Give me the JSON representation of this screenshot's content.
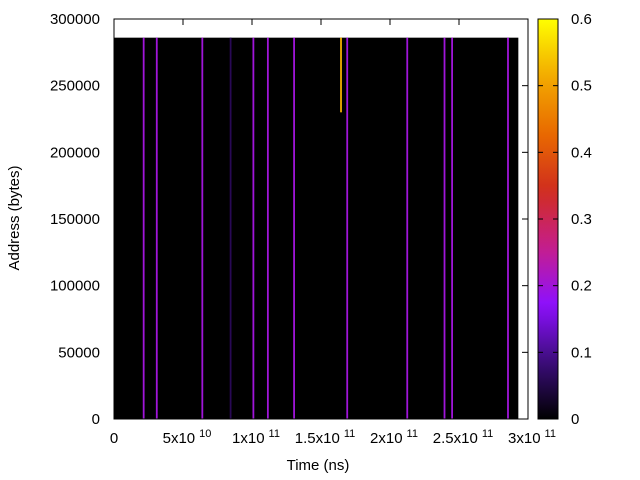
{
  "chart_data": {
    "type": "heatmap",
    "title": "",
    "xlabel": "Time (ns)",
    "ylabel": "Address (bytes)",
    "xlim": [
      0,
      300000000000
    ],
    "ylim": [
      0,
      300000
    ],
    "x_ticks": [
      {
        "value": 0,
        "mantissa": "0",
        "exp": ""
      },
      {
        "value": 50000000000,
        "mantissa": "5x10",
        "exp": "10"
      },
      {
        "value": 100000000000,
        "mantissa": "1x10",
        "exp": "11"
      },
      {
        "value": 150000000000,
        "mantissa": "1.5x10",
        "exp": "11"
      },
      {
        "value": 200000000000,
        "mantissa": "2x10",
        "exp": "11"
      },
      {
        "value": 250000000000,
        "mantissa": "2.5x10",
        "exp": "11"
      },
      {
        "value": 300000000000,
        "mantissa": "3x10",
        "exp": "11"
      }
    ],
    "y_ticks": [
      {
        "value": 0,
        "label": "0"
      },
      {
        "value": 50000,
        "label": "50000"
      },
      {
        "value": 100000,
        "label": "100000"
      },
      {
        "value": 150000,
        "label": "150000"
      },
      {
        "value": 200000,
        "label": "200000"
      },
      {
        "value": 250000,
        "label": "250000"
      },
      {
        "value": 300000,
        "label": "300000"
      }
    ],
    "background_value": 0,
    "data_extent": {
      "x": [
        0,
        293000000000
      ],
      "y": [
        0,
        286000
      ]
    },
    "stripes": [
      {
        "x": 21500000000,
        "y0": 0,
        "y1": 286000,
        "value": 0.2
      },
      {
        "x": 31000000000,
        "y0": 0,
        "y1": 286000,
        "value": 0.2
      },
      {
        "x": 64000000000,
        "y0": 0,
        "y1": 286000,
        "value": 0.2
      },
      {
        "x": 84500000000,
        "y0": 0,
        "y1": 286000,
        "value": 0.06
      },
      {
        "x": 101000000000,
        "y0": 0,
        "y1": 286000,
        "value": 0.2
      },
      {
        "x": 111500000000,
        "y0": 0,
        "y1": 286000,
        "value": 0.2
      },
      {
        "x": 130500000000,
        "y0": 0,
        "y1": 286000,
        "value": 0.2
      },
      {
        "x": 164500000000,
        "y0": 230000,
        "y1": 286000,
        "value": 0.52
      },
      {
        "x": 169000000000,
        "y0": 0,
        "y1": 286000,
        "value": 0.2
      },
      {
        "x": 212500000000,
        "y0": 0,
        "y1": 286000,
        "value": 0.2
      },
      {
        "x": 239500000000,
        "y0": 0,
        "y1": 286000,
        "value": 0.2
      },
      {
        "x": 245000000000,
        "y0": 0,
        "y1": 286000,
        "value": 0.2
      },
      {
        "x": 285500000000,
        "y0": 0,
        "y1": 286000,
        "value": 0.2
      }
    ],
    "colorbar": {
      "min": 0,
      "max": 0.6,
      "ticks": [
        {
          "value": 0,
          "label": "0"
        },
        {
          "value": 0.1,
          "label": "0.1"
        },
        {
          "value": 0.2,
          "label": "0.2"
        },
        {
          "value": 0.3,
          "label": "0.3"
        },
        {
          "value": 0.4,
          "label": "0.4"
        },
        {
          "value": 0.5,
          "label": "0.5"
        },
        {
          "value": 0.6,
          "label": "0.6"
        }
      ],
      "palette": [
        "#000000",
        "#3b0d7a",
        "#8d10ff",
        "#c61e8c",
        "#d02d1e",
        "#e96a00",
        "#f2aa00",
        "#ffff00"
      ]
    },
    "grid": false,
    "legend": "colorbar-right"
  }
}
